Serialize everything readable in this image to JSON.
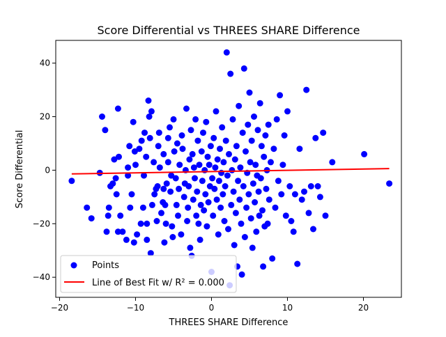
{
  "chart_data": {
    "type": "scatter",
    "title": "Score Differential vs THREES SHARE Difference",
    "xlabel": "THREES SHARE Difference",
    "ylabel": "Score Differential",
    "xlim": [
      -20.5,
      25.0
    ],
    "ylim": [
      -47.5,
      48.5
    ],
    "xticks": [
      -20,
      -10,
      0,
      10,
      20
    ],
    "yticks": [
      -40,
      -20,
      0,
      20,
      40
    ],
    "grid": false,
    "legend_position": "lower-left",
    "series": [
      {
        "name": "Points",
        "kind": "scatter",
        "color": "#0000ff",
        "points": [
          [
            -18.4,
            -4
          ],
          [
            -16.4,
            -14
          ],
          [
            -15.8,
            -18
          ],
          [
            -14.7,
            -1
          ],
          [
            -14.4,
            20
          ],
          [
            -14,
            15
          ],
          [
            -13.8,
            -23
          ],
          [
            -13.6,
            -17
          ],
          [
            -13.5,
            -14
          ],
          [
            -13.3,
            -6
          ],
          [
            -13,
            -5
          ],
          [
            -12.8,
            4
          ],
          [
            -12.6,
            -3
          ],
          [
            -12.5,
            -9
          ],
          [
            -12.3,
            23
          ],
          [
            -12.3,
            -23
          ],
          [
            -12.2,
            5
          ],
          [
            -12,
            -17
          ],
          [
            -11.7,
            -23
          ],
          [
            -11.2,
            -26
          ],
          [
            -11,
            -2
          ],
          [
            -11,
            1
          ],
          [
            -10.8,
            9
          ],
          [
            -10.7,
            -14
          ],
          [
            -10.5,
            -9
          ],
          [
            -10.3,
            18
          ],
          [
            -10.2,
            -27
          ],
          [
            -10.1,
            7
          ],
          [
            -10,
            2
          ],
          [
            -9.8,
            -24
          ],
          [
            -9.5,
            8
          ],
          [
            -9.3,
            -20
          ],
          [
            -9.2,
            11
          ],
          [
            -9,
            -14
          ],
          [
            -8.9,
            -2
          ],
          [
            -8.8,
            14
          ],
          [
            -8.6,
            5
          ],
          [
            -8.5,
            -20
          ],
          [
            -8.5,
            -26
          ],
          [
            -8.3,
            26
          ],
          [
            -8.2,
            20
          ],
          [
            -8.1,
            12
          ],
          [
            -8,
            -31
          ],
          [
            -7.9,
            22
          ],
          [
            -7.8,
            -13
          ],
          [
            -7.6,
            3
          ],
          [
            -7.5,
            -9
          ],
          [
            -7.3,
            -7
          ],
          [
            -7.2,
            -19
          ],
          [
            -7.1,
            -6
          ],
          [
            -7,
            9
          ],
          [
            -6.9,
            14
          ],
          [
            -6.8,
            1
          ],
          [
            -6.6,
            -16
          ],
          [
            -6.4,
            -12
          ],
          [
            -6.3,
            -7
          ],
          [
            -6.3,
            6
          ],
          [
            -6.2,
            -27
          ],
          [
            -6.1,
            -13
          ],
          [
            -6,
            -20
          ],
          [
            -5.9,
            -5
          ],
          [
            -5.7,
            3
          ],
          [
            -5.7,
            12
          ],
          [
            -5.5,
            16
          ],
          [
            -5.4,
            -8
          ],
          [
            -5.3,
            -2
          ],
          [
            -5.2,
            -21
          ],
          [
            -5.1,
            -25
          ],
          [
            -5,
            19
          ],
          [
            -4.9,
            7
          ],
          [
            -4.7,
            -3
          ],
          [
            -4.6,
            -13
          ],
          [
            -4.5,
            10
          ],
          [
            -4.4,
            -17
          ],
          [
            -4.3,
            -7
          ],
          [
            -4.2,
            2
          ],
          [
            -4,
            -24
          ],
          [
            -3.9,
            13
          ],
          [
            -3.8,
            8
          ],
          [
            -3.6,
            -10
          ],
          [
            -3.5,
            -5
          ],
          [
            -3.4,
            0
          ],
          [
            -3.3,
            23
          ],
          [
            -3.2,
            -19
          ],
          [
            -3.1,
            -14
          ],
          [
            -3,
            -6
          ],
          [
            -2.9,
            4
          ],
          [
            -2.8,
            -29
          ],
          [
            -2.7,
            15
          ],
          [
            -2.6,
            -32
          ],
          [
            -2.5,
            6
          ],
          [
            -2.4,
            -11
          ],
          [
            -2.3,
            1
          ],
          [
            -2.2,
            -3
          ],
          [
            -2.1,
            19
          ],
          [
            -2,
            -17
          ],
          [
            -1.9,
            -8
          ],
          [
            -1.8,
            11
          ],
          [
            -1.7,
            -20
          ],
          [
            -1.6,
            2
          ],
          [
            -1.5,
            -26
          ],
          [
            -1.4,
            -13
          ],
          [
            -1.3,
            7
          ],
          [
            -1.2,
            -4
          ],
          [
            -1.1,
            14
          ],
          [
            -1,
            -15
          ],
          [
            -0.9,
            0
          ],
          [
            -0.8,
            -9
          ],
          [
            -0.7,
            18
          ],
          [
            -0.6,
            -21
          ],
          [
            -0.5,
            5
          ],
          [
            -0.4,
            -12
          ],
          [
            -0.3,
            2
          ],
          [
            -0.2,
            -6
          ],
          [
            -0.1,
            9
          ],
          [
            0,
            -38
          ],
          [
            0.1,
            -3
          ],
          [
            0.2,
            -17
          ],
          [
            0.3,
            12
          ],
          [
            0.4,
            -7
          ],
          [
            0.5,
            1
          ],
          [
            0.6,
            22
          ],
          [
            0.7,
            -11
          ],
          [
            0.8,
            4
          ],
          [
            0.9,
            -24
          ],
          [
            1,
            -4
          ],
          [
            1.1,
            8
          ],
          [
            1.2,
            -14
          ],
          [
            1.3,
            -1
          ],
          [
            1.4,
            16
          ],
          [
            1.5,
            -9
          ],
          [
            1.6,
            3
          ],
          [
            1.7,
            -19
          ],
          [
            1.8,
            -6
          ],
          [
            1.9,
            11
          ],
          [
            2,
            44
          ],
          [
            2.1,
            -2
          ],
          [
            2.2,
            -22
          ],
          [
            2.3,
            6
          ],
          [
            2.4,
            -43
          ],
          [
            2.5,
            36
          ],
          [
            2.6,
            -13
          ],
          [
            2.7,
            0
          ],
          [
            2.8,
            19
          ],
          [
            2.9,
            -8
          ],
          [
            3,
            -28
          ],
          [
            3.1,
            4
          ],
          [
            3.2,
            -16
          ],
          [
            3.3,
            9
          ],
          [
            3.4,
            -36
          ],
          [
            3.5,
            -4
          ],
          [
            3.6,
            24
          ],
          [
            3.7,
            -11
          ],
          [
            3.8,
            1
          ],
          [
            3.9,
            -20
          ],
          [
            4,
            -39
          ],
          [
            4.1,
            14
          ],
          [
            4.2,
            -6
          ],
          [
            4.3,
            38
          ],
          [
            4.4,
            -25
          ],
          [
            4.5,
            7
          ],
          [
            4.6,
            -14
          ],
          [
            4.7,
            -1
          ],
          [
            4.8,
            17
          ],
          [
            4.9,
            -9
          ],
          [
            5,
            29
          ],
          [
            5.1,
            3
          ],
          [
            5.2,
            -18
          ],
          [
            5.3,
            11
          ],
          [
            5.4,
            -29
          ],
          [
            5.5,
            -5
          ],
          [
            5.6,
            20
          ],
          [
            5.7,
            -12
          ],
          [
            5.8,
            2
          ],
          [
            5.9,
            -23
          ],
          [
            6,
            -2
          ],
          [
            6.1,
            15
          ],
          [
            6.2,
            -8
          ],
          [
            6.3,
            -17
          ],
          [
            6.4,
            25
          ],
          [
            6.5,
            -3
          ],
          [
            6.6,
            9
          ],
          [
            6.7,
            -15
          ],
          [
            6.8,
            -36
          ],
          [
            6.9,
            5
          ],
          [
            7,
            -21
          ],
          [
            7.1,
            13
          ],
          [
            7.2,
            -7
          ],
          [
            7.3,
            0
          ],
          [
            7.4,
            -20
          ],
          [
            7.5,
            17
          ],
          [
            7.6,
            -11
          ],
          [
            7.8,
            3
          ],
          [
            8,
            -33
          ],
          [
            8.2,
            8
          ],
          [
            8.4,
            -14
          ],
          [
            8.6,
            19
          ],
          [
            8.8,
            -4
          ],
          [
            9,
            28
          ],
          [
            9.2,
            -9
          ],
          [
            9.4,
            2
          ],
          [
            9.6,
            13
          ],
          [
            9.8,
            -17
          ],
          [
            10,
            22
          ],
          [
            10.3,
            -6
          ],
          [
            10.5,
            -19
          ],
          [
            10.8,
            -23
          ],
          [
            11,
            -9
          ],
          [
            11.3,
            -35
          ],
          [
            11.6,
            8
          ],
          [
            11.9,
            -11
          ],
          [
            12.2,
            -8
          ],
          [
            12.5,
            30
          ],
          [
            12.8,
            -16
          ],
          [
            13.1,
            -6
          ],
          [
            13.4,
            -22
          ],
          [
            13.7,
            12
          ],
          [
            14,
            -6
          ],
          [
            14.3,
            -10
          ],
          [
            14.7,
            14
          ],
          [
            15,
            -17
          ],
          [
            15.9,
            3
          ],
          [
            20.1,
            6
          ],
          [
            23.4,
            -5
          ]
        ]
      },
      {
        "name": "Line of Best Fit w/ R² = 0.000",
        "kind": "line",
        "color": "#ff0000",
        "points": [
          [
            -18.4,
            -1.4
          ],
          [
            23.4,
            0.6
          ]
        ]
      }
    ]
  }
}
